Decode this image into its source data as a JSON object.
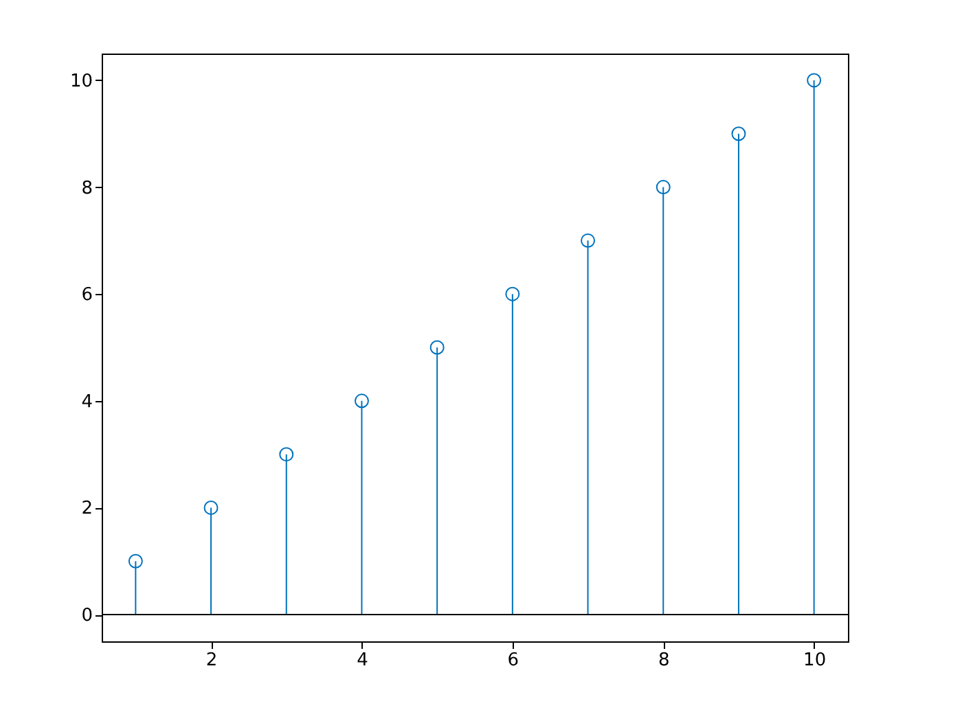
{
  "chart_data": {
    "type": "lollipop",
    "x": [
      1,
      2,
      3,
      4,
      5,
      6,
      7,
      8,
      9,
      10
    ],
    "series": [
      {
        "color": "#0072bd",
        "values": [
          1,
          2,
          3,
          4,
          5,
          6,
          7,
          8,
          9,
          10
        ]
      }
    ],
    "xlim": [
      0.55,
      10.45
    ],
    "xticks": [
      2,
      4,
      6,
      8,
      10
    ],
    "ylim": [
      -0.5,
      10.5
    ],
    "yticks": [
      0,
      2,
      4,
      6,
      8,
      10
    ],
    "ref_lines": [
      {
        "axis": "y",
        "value": 0,
        "color": "#000000"
      }
    ],
    "marker": "circle"
  }
}
